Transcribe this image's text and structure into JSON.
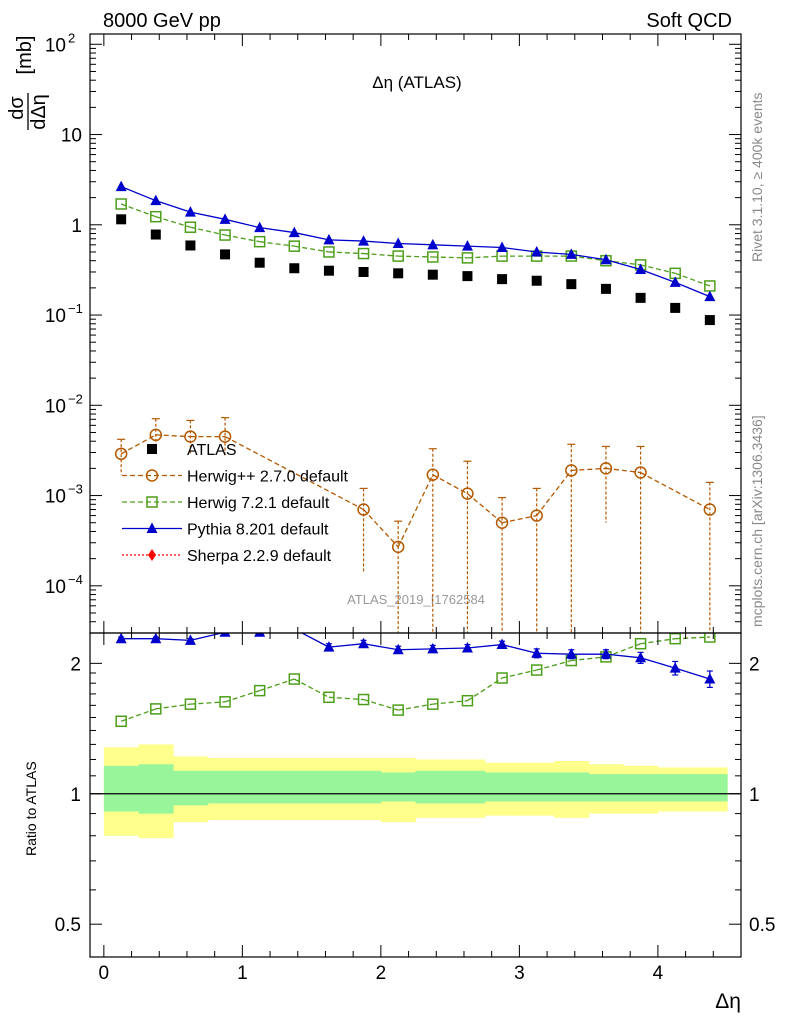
{
  "header": {
    "left": "8000 GeV pp",
    "right": "Soft QCD"
  },
  "side_labels": {
    "rivet": "Rivet 3.1.10, ≥ 400k events",
    "mcplots": "mcplots.cern.ch [arXiv:1306.3436]"
  },
  "chart_data": [
    {
      "type": "scatter",
      "title": "Δη (ATLAS)",
      "ylabel": "dσ/dΔη [mb]",
      "yscale": "log",
      "ylim": [
        3e-05,
        130
      ],
      "xlim": [
        -0.1,
        4.6
      ],
      "annotation": "ATLAS_2019_I1762584",
      "y_ticks": [
        {
          "v": 0.0001,
          "label": "10",
          "exp": "−4"
        },
        {
          "v": 0.001,
          "label": "10",
          "exp": "−3"
        },
        {
          "v": 0.01,
          "label": "10",
          "exp": "−2"
        },
        {
          "v": 0.1,
          "label": "10",
          "exp": "−1"
        },
        {
          "v": 1,
          "label": "1",
          "exp": ""
        },
        {
          "v": 10,
          "label": "10",
          "exp": ""
        },
        {
          "v": 100,
          "label": "10",
          "exp": "2"
        }
      ],
      "legend_position": "center-left",
      "x": [
        0.125,
        0.375,
        0.625,
        0.875,
        1.125,
        1.375,
        1.625,
        1.875,
        2.125,
        2.375,
        2.625,
        2.875,
        3.125,
        3.375,
        3.625,
        3.875,
        4.125,
        4.375
      ],
      "series": [
        {
          "name": "ATLAS",
          "marker": "square",
          "color": "#000000",
          "values": [
            1.15,
            0.78,
            0.59,
            0.47,
            0.38,
            0.33,
            0.31,
            0.3,
            0.29,
            0.28,
            0.27,
            0.25,
            0.24,
            0.22,
            0.195,
            0.155,
            0.12,
            0.088
          ]
        },
        {
          "name": "Herwig++ 2.7.0 default",
          "marker": "open-circle",
          "color": "#b35900",
          "line": "dashed",
          "values": [
            0.0029,
            0.0047,
            0.0045,
            0.0045,
            null,
            null,
            null,
            0.0007,
            0.00027,
            0.0017,
            0.00105,
            0.0005,
            0.0006,
            0.0019,
            0.002,
            0.0018,
            null,
            0.0007
          ],
          "err_up": [
            0.0042,
            0.0071,
            0.0068,
            0.0073,
            null,
            null,
            null,
            0.0012,
            0.00052,
            0.0033,
            0.0024,
            0.00095,
            0.0012,
            0.0037,
            0.0035,
            0.0035,
            null,
            0.0014
          ],
          "err_down": [
            0.0017,
            0.0031,
            0.0028,
            0.0028,
            null,
            null,
            null,
            0.00014,
            2e-05,
            2e-05,
            2e-05,
            2e-05,
            2e-05,
            2e-05,
            0.0005,
            3e-05,
            null,
            2e-05
          ]
        },
        {
          "name": "Herwig 7.2.1 default",
          "marker": "open-square",
          "color": "#4d9e1a",
          "line": "dashed",
          "values": [
            1.7,
            1.23,
            0.94,
            0.77,
            0.65,
            0.58,
            0.5,
            0.48,
            0.45,
            0.44,
            0.43,
            0.45,
            0.45,
            0.45,
            0.4,
            0.36,
            0.29,
            0.21
          ]
        },
        {
          "name": "Pythia 8.201 default",
          "marker": "triangle",
          "color": "#0000cc",
          "line": "solid",
          "values": [
            2.65,
            1.85,
            1.38,
            1.15,
            0.93,
            0.82,
            0.68,
            0.66,
            0.62,
            0.6,
            0.58,
            0.56,
            0.5,
            0.47,
            0.41,
            0.32,
            0.23,
            0.16
          ]
        },
        {
          "name": "Sherpa 2.2.9 default",
          "marker": "diamond",
          "color": "#ff0000",
          "line": "dotted",
          "values": []
        }
      ]
    },
    {
      "type": "scatter",
      "ylabel": "Ratio to ATLAS",
      "xlabel": "Δη",
      "yscale": "log",
      "ylim": [
        0.42,
        2.35
      ],
      "xlim": [
        -0.1,
        4.6
      ],
      "x_ticks": [
        0,
        1,
        2,
        3,
        4
      ],
      "y_ticks": [
        0.5,
        1,
        2
      ],
      "band_edges": [
        0,
        0.25,
        0.5,
        0.75,
        1.0,
        1.25,
        1.5,
        1.75,
        2.0,
        2.25,
        2.5,
        2.75,
        3.0,
        3.25,
        3.5,
        3.75,
        4.0,
        4.25,
        4.5
      ],
      "band_inner": [
        [
          0.91,
          1.16
        ],
        [
          0.9,
          1.17
        ],
        [
          0.94,
          1.13
        ],
        [
          0.95,
          1.13
        ],
        [
          0.95,
          1.13
        ],
        [
          0.95,
          1.13
        ],
        [
          0.95,
          1.13
        ],
        [
          0.95,
          1.13
        ],
        [
          0.96,
          1.12
        ],
        [
          0.95,
          1.13
        ],
        [
          0.95,
          1.13
        ],
        [
          0.96,
          1.12
        ],
        [
          0.96,
          1.12
        ],
        [
          0.96,
          1.12
        ],
        [
          0.96,
          1.11
        ],
        [
          0.96,
          1.11
        ],
        [
          0.96,
          1.11
        ],
        [
          0.96,
          1.11
        ]
      ],
      "band_outer": [
        [
          0.8,
          1.28
        ],
        [
          0.79,
          1.3
        ],
        [
          0.86,
          1.22
        ],
        [
          0.87,
          1.21
        ],
        [
          0.87,
          1.21
        ],
        [
          0.87,
          1.21
        ],
        [
          0.87,
          1.21
        ],
        [
          0.87,
          1.21
        ],
        [
          0.86,
          1.21
        ],
        [
          0.88,
          1.2
        ],
        [
          0.88,
          1.2
        ],
        [
          0.89,
          1.18
        ],
        [
          0.89,
          1.18
        ],
        [
          0.88,
          1.19
        ],
        [
          0.9,
          1.17
        ],
        [
          0.9,
          1.16
        ],
        [
          0.91,
          1.15
        ],
        [
          0.91,
          1.15
        ]
      ],
      "x": [
        0.125,
        0.375,
        0.625,
        0.875,
        1.125,
        1.375,
        1.625,
        1.875,
        2.125,
        2.375,
        2.625,
        2.875,
        3.125,
        3.375,
        3.625,
        3.875,
        4.125,
        4.375
      ],
      "series": [
        {
          "name": "Herwig 7.2.1 default",
          "marker": "open-square",
          "color": "#4d9e1a",
          "line": "dashed",
          "values": [
            1.47,
            1.57,
            1.61,
            1.63,
            1.73,
            1.84,
            1.67,
            1.65,
            1.56,
            1.61,
            1.64,
            1.85,
            1.93,
            2.03,
            2.07,
            2.22,
            2.28,
            2.3
          ]
        },
        {
          "name": "Pythia 8.201 default",
          "marker": "triangle",
          "color": "#0000cc",
          "line": "solid",
          "values": [
            2.28,
            2.28,
            2.26,
            2.36,
            2.36,
            2.4,
            2.18,
            2.22,
            2.15,
            2.16,
            2.17,
            2.21,
            2.11,
            2.1,
            2.1,
            2.06,
            1.95,
            1.84
          ],
          "errors": [
            0.02,
            0.02,
            0.02,
            0.02,
            0.02,
            0.02,
            0.04,
            0.04,
            0.04,
            0.04,
            0.04,
            0.04,
            0.05,
            0.05,
            0.05,
            0.06,
            0.07,
            0.08
          ]
        }
      ]
    }
  ]
}
